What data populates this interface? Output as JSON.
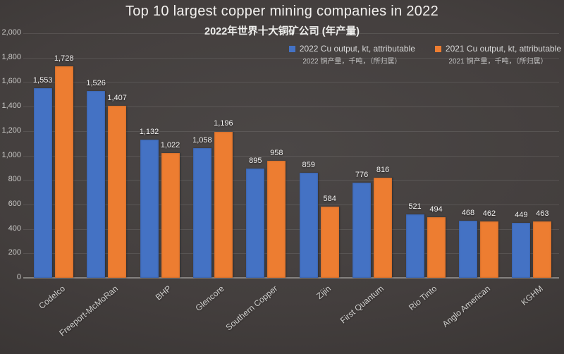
{
  "title": "Top 10 largest copper mining companies in 2022",
  "subtitle": "2022年世界十大铜矿公司 (年产量)",
  "legend": [
    {
      "label": "2022 Cu output, kt, attributable",
      "sublabel": "2022 铜产量，千吨，（所归属）",
      "color": "#4472C4"
    },
    {
      "label": "2021 Cu output, kt, attributable",
      "sublabel": "2021 铜产量，千吨，（所归属）",
      "color": "#ED7D31"
    }
  ],
  "chart_data": {
    "type": "bar",
    "title": "Top 10 largest copper mining companies in 2022",
    "subtitle": "2022年世界十大铜矿公司 (年产量)",
    "categories": [
      "Codelco",
      "Freeport-McMoRan",
      "BHP",
      "Glencore",
      "Southern Copper",
      "Zijin",
      "First Quantum",
      "Rio Tinto",
      "Anglo American",
      "KGHM"
    ],
    "series": [
      {
        "name": "2022 Cu output, kt, attributable",
        "color": "#4472C4",
        "values": [
          1553,
          1526,
          1132,
          1058,
          895,
          859,
          776,
          521,
          468,
          449
        ]
      },
      {
        "name": "2021 Cu output, kt, attributable",
        "color": "#ED7D31",
        "values": [
          1728,
          1407,
          1022,
          1196,
          958,
          584,
          816,
          494,
          462,
          463
        ]
      }
    ],
    "xlabel": "",
    "ylabel": "",
    "ylim": [
      0,
      2000
    ],
    "ytick_step": 200,
    "grid": true,
    "value_labels": true,
    "legend_position": "top-right",
    "background_color": "#433f3e",
    "text_color": "#f2f0ee"
  }
}
